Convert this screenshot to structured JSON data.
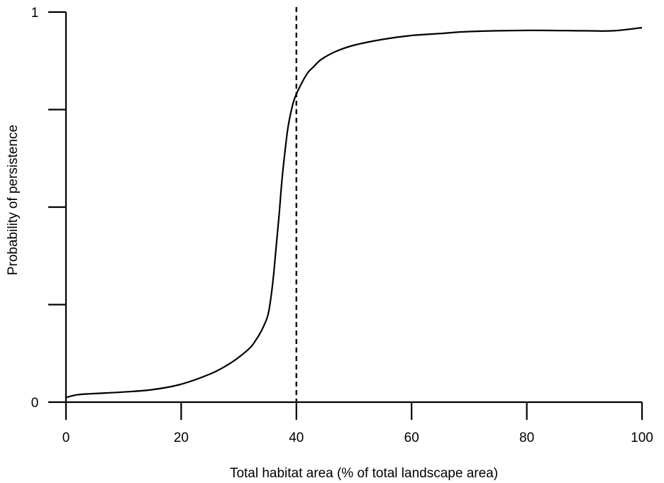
{
  "chart_data": {
    "type": "line",
    "title": "",
    "xlabel": "Total habitat area (% of total landscape area)",
    "ylabel": "Probability of persistence",
    "xlim": [
      0,
      100
    ],
    "ylim": [
      0,
      1
    ],
    "x_ticks": [
      0,
      20,
      40,
      60,
      80,
      100
    ],
    "x_tick_labels": [
      "0",
      "20",
      "40",
      "60",
      "80",
      "100"
    ],
    "y_ticks": [
      0,
      0.25,
      0.5,
      0.75,
      1
    ],
    "y_tick_labels": [
      "0",
      "",
      "",
      "",
      "1"
    ],
    "grid": false,
    "legend": "none",
    "reference_line": {
      "orientation": "vertical",
      "x": 40,
      "style": "dashed"
    },
    "series": [
      {
        "color": "#000000",
        "x": [
          0,
          2,
          5,
          10,
          15,
          20,
          25,
          28,
          30,
          32,
          33,
          34,
          35,
          35.5,
          36,
          36.5,
          37,
          37.5,
          38,
          38.5,
          39,
          39.5,
          40,
          41,
          42,
          43,
          44,
          45,
          47,
          50,
          55,
          60,
          65,
          70,
          80,
          90,
          95,
          100
        ],
        "y": [
          0.012,
          0.019,
          0.022,
          0.026,
          0.032,
          0.046,
          0.072,
          0.095,
          0.115,
          0.14,
          0.16,
          0.185,
          0.22,
          0.26,
          0.32,
          0.4,
          0.48,
          0.57,
          0.64,
          0.7,
          0.74,
          0.77,
          0.79,
          0.82,
          0.845,
          0.86,
          0.875,
          0.885,
          0.9,
          0.915,
          0.93,
          0.94,
          0.945,
          0.95,
          0.953,
          0.952,
          0.952,
          0.96
        ]
      }
    ]
  }
}
